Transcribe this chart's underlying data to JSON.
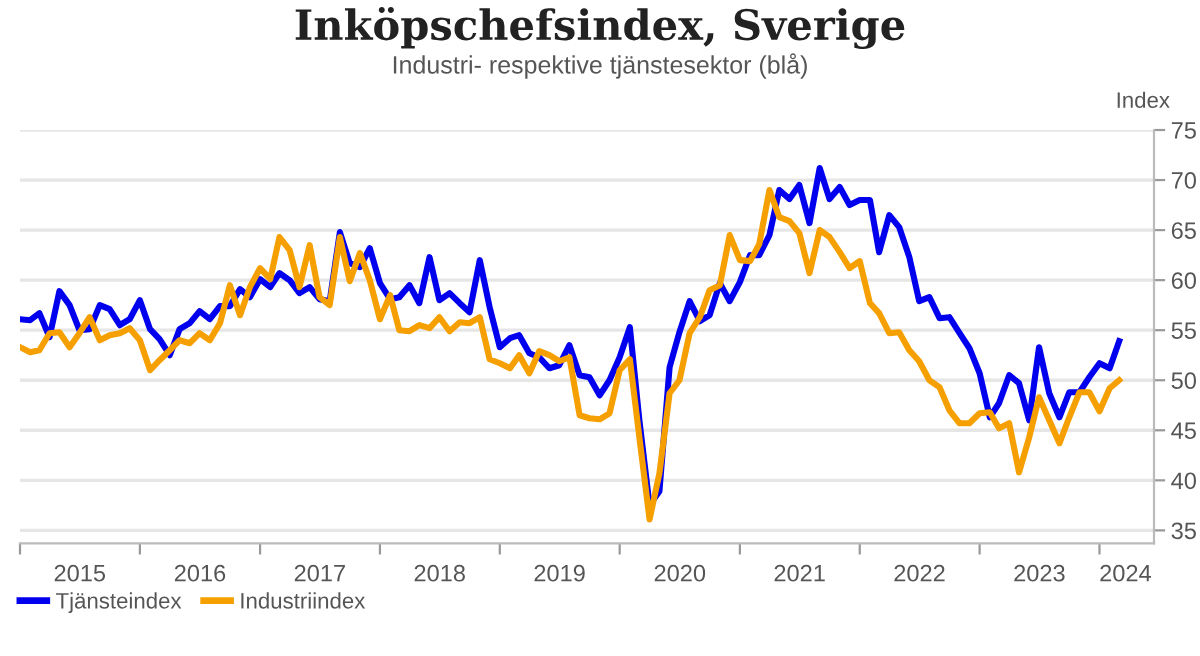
{
  "chart_data": {
    "type": "line",
    "title": "Inköpschefsindex, Sverige",
    "subtitle": "Industri- respektive tjänstesektor (blå)",
    "ylabel": "Index",
    "x": [
      "2015-01",
      "2015-02",
      "2015-03",
      "2015-04",
      "2015-05",
      "2015-06",
      "2015-07",
      "2015-08",
      "2015-09",
      "2015-10",
      "2015-11",
      "2015-12",
      "2016-01",
      "2016-02",
      "2016-03",
      "2016-04",
      "2016-05",
      "2016-06",
      "2016-07",
      "2016-08",
      "2016-09",
      "2016-10",
      "2016-11",
      "2016-12",
      "2017-01",
      "2017-02",
      "2017-03",
      "2017-04",
      "2017-05",
      "2017-06",
      "2017-07",
      "2017-08",
      "2017-09",
      "2017-10",
      "2017-11",
      "2017-12",
      "2018-01",
      "2018-02",
      "2018-03",
      "2018-04",
      "2018-05",
      "2018-06",
      "2018-07",
      "2018-08",
      "2018-09",
      "2018-10",
      "2018-11",
      "2018-12",
      "2019-01",
      "2019-02",
      "2019-03",
      "2019-04",
      "2019-05",
      "2019-06",
      "2019-07",
      "2019-08",
      "2019-09",
      "2019-10",
      "2019-11",
      "2019-12",
      "2020-01",
      "2020-02",
      "2020-03",
      "2020-04",
      "2020-05",
      "2020-06",
      "2020-07",
      "2020-08",
      "2020-09",
      "2020-10",
      "2020-11",
      "2020-12",
      "2021-01",
      "2021-02",
      "2021-03",
      "2021-04",
      "2021-05",
      "2021-06",
      "2021-07",
      "2021-08",
      "2021-09",
      "2021-10",
      "2021-11",
      "2021-12",
      "2022-01",
      "2022-02",
      "2022-03",
      "2022-04",
      "2022-05",
      "2022-06",
      "2022-07",
      "2022-08",
      "2022-09",
      "2022-10",
      "2022-11",
      "2022-12",
      "2023-01",
      "2023-02",
      "2023-03",
      "2023-04",
      "2023-05",
      "2023-06",
      "2023-07",
      "2023-08",
      "2023-09",
      "2023-10",
      "2023-11",
      "2023-12",
      "2024-01",
      "2024-02",
      "2024-03"
    ],
    "series": [
      {
        "name": "Tjänsteindex",
        "color": "#0000ee",
        "values": [
          56.1,
          56,
          56.7,
          54.3,
          58.9,
          57.5,
          55,
          55.1,
          57.5,
          57.1,
          55.5,
          56.1,
          58,
          55.1,
          54.1,
          52.5,
          55.1,
          55.7,
          56.9,
          56.1,
          57.4,
          57.4,
          59.1,
          58.3,
          60.1,
          59.3,
          60.7,
          60,
          58.7,
          59.3,
          58.1,
          57.9,
          64.8,
          61.7,
          61.3,
          63.2,
          59.7,
          58.1,
          58.3,
          59.5,
          57.7,
          62.3,
          58,
          58.7,
          57.7,
          56.8,
          62,
          57.3,
          53.3,
          54.2,
          54.5,
          52.7,
          52.3,
          51.2,
          51.5,
          53.5,
          50.5,
          50.3,
          48.5,
          50,
          52.3,
          55.3,
          46,
          37.5,
          38.9,
          51.3,
          54.8,
          57.9,
          55.9,
          56.5,
          59.7,
          57.9,
          59.8,
          62.5,
          62.5,
          64.5,
          69,
          68.1,
          69.5,
          65.7,
          71.2,
          68.1,
          69.3,
          67.5,
          68,
          68,
          62.8,
          66.5,
          65.3,
          62.3,
          57.9,
          58.3,
          56.2,
          56.3,
          54.7,
          53.2,
          50.7,
          46.3,
          47.7,
          50.5,
          49.7,
          46,
          53.3,
          48.7,
          46.3,
          48.8,
          48.8,
          50.3,
          51.7,
          51.2,
          53.9
        ]
      },
      {
        "name": "Industriindex",
        "color": "#f5a000",
        "values": [
          53.3,
          52.8,
          53,
          54.7,
          54.8,
          53.3,
          54.7,
          56.3,
          54,
          54.5,
          54.7,
          55.2,
          54,
          51,
          52,
          53,
          54,
          53.7,
          54.7,
          54,
          55.7,
          59.5,
          56.5,
          59.3,
          61.2,
          60.1,
          64.3,
          63,
          59.3,
          63.5,
          58.3,
          57.5,
          64.3,
          59.9,
          62.7,
          60,
          56.1,
          58.5,
          55,
          54.9,
          55.5,
          55.2,
          56.3,
          54.9,
          55.8,
          55.7,
          56.3,
          52.1,
          51.7,
          51.2,
          52.5,
          50.7,
          52.9,
          52.5,
          51.9,
          52.3,
          46.5,
          46.2,
          46.1,
          46.7,
          51,
          52.1,
          44.3,
          36.1,
          40.7,
          48.7,
          50,
          54.7,
          56.3,
          59,
          59.5,
          64.5,
          62,
          61.9,
          63.6,
          69,
          66.3,
          65.9,
          64.7,
          60.7,
          65,
          64.3,
          62.8,
          61.2,
          61.9,
          57.7,
          56.7,
          54.7,
          54.8,
          53,
          51.9,
          50,
          49.3,
          47,
          45.7,
          45.7,
          46.7,
          46.8,
          45.2,
          45.7,
          40.8,
          44.3,
          48.3,
          46,
          43.7,
          46.3,
          48.8,
          48.8,
          46.9,
          49.2,
          50
        ]
      }
    ],
    "xlim": [
      "2015-01-01",
      "2024-06-15"
    ],
    "xticks": [
      {
        "value": "2015-01-01",
        "label": null
      },
      {
        "value": "2015-07-02",
        "label": "2015"
      },
      {
        "value": "2016-01-01",
        "label": null
      },
      {
        "value": "2016-07-02",
        "label": "2016"
      },
      {
        "value": "2017-01-01",
        "label": null
      },
      {
        "value": "2017-07-02",
        "label": "2017"
      },
      {
        "value": "2018-01-01",
        "label": null
      },
      {
        "value": "2018-07-02",
        "label": "2018"
      },
      {
        "value": "2019-01-01",
        "label": null
      },
      {
        "value": "2019-07-02",
        "label": "2019"
      },
      {
        "value": "2020-01-01",
        "label": null
      },
      {
        "value": "2020-07-02",
        "label": "2020"
      },
      {
        "value": "2021-01-01",
        "label": null
      },
      {
        "value": "2021-07-02",
        "label": "2021"
      },
      {
        "value": "2022-01-01",
        "label": null
      },
      {
        "value": "2022-07-02",
        "label": "2022"
      },
      {
        "value": "2023-01-01",
        "label": null
      },
      {
        "value": "2023-07-02",
        "label": "2023"
      },
      {
        "value": "2024-01-01",
        "label": null
      },
      {
        "value": "2024-03-20",
        "label": "2024"
      }
    ],
    "ylim": [
      33.7,
      75
    ],
    "yticks": [
      35,
      40,
      45,
      50,
      55,
      60,
      65,
      70,
      75
    ],
    "grid": "y",
    "legend": "bottom left",
    "marker": "none",
    "line_style": "solid"
  }
}
